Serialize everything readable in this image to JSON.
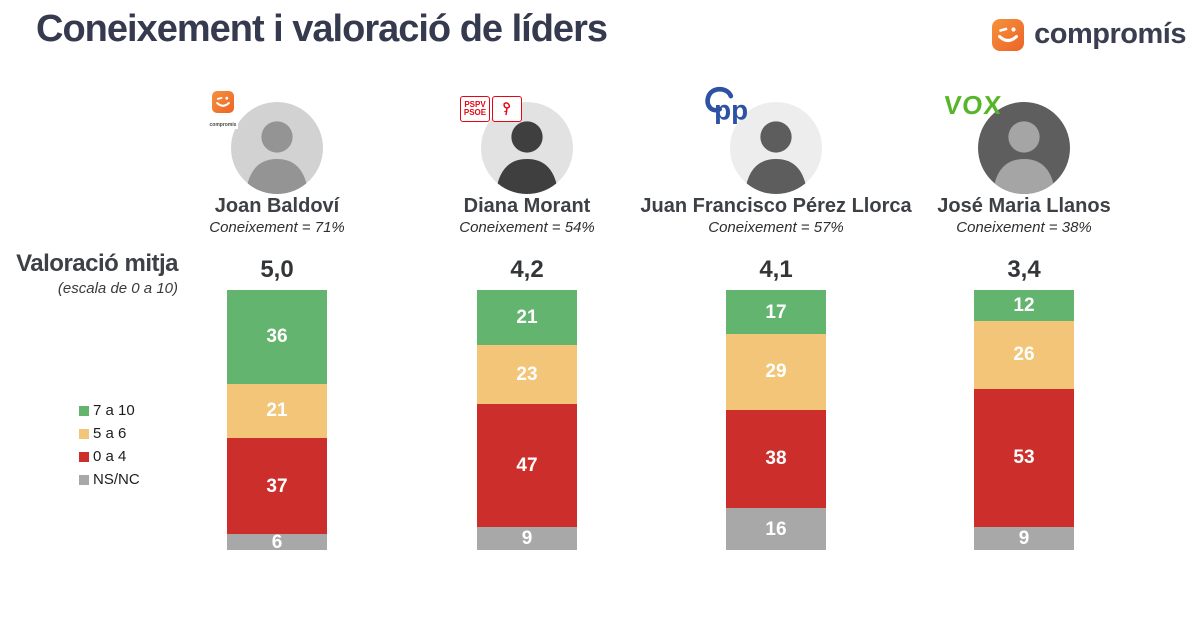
{
  "header": {
    "title": "Coneixement i valoració de líders",
    "brand": "compromís",
    "brand_color": "#3a3e50",
    "brand_orange": "#ee7227"
  },
  "axis_label": {
    "title": "Valoració mitja",
    "subtitle": "(escala de 0 a 10)"
  },
  "legend": [
    {
      "label": "7 a 10",
      "color": "#63b46e"
    },
    {
      "label": "5 a 6",
      "color": "#f2c579"
    },
    {
      "label": "0 a 4",
      "color": "#cc2f2b"
    },
    {
      "label": "NS/NC",
      "color": "#a8a8a8"
    }
  ],
  "party_logos": {
    "compromis": {
      "text": "compromís",
      "color": "#ee7227"
    },
    "pspv": {
      "line1": "PSPV",
      "line2": "PSOE",
      "color": "#e30613"
    },
    "pp": {
      "text": "pp",
      "color": "#2d51a3"
    },
    "vox": {
      "text": "VOX",
      "color": "#57b529"
    }
  },
  "leaders": [
    {
      "name": "Joan Baldoví",
      "party": "Compromís",
      "coneixement": "Coneixement =  71%",
      "average": "5,0",
      "photo_bg": "#d2d2d2",
      "photo_fg": "#949494"
    },
    {
      "name": "Diana Morant",
      "party": "PSPV-PSOE",
      "coneixement": "Coneixement = 54%",
      "average": "4,2",
      "photo_bg": "#e2e2e2",
      "photo_fg": "#3f3f3f"
    },
    {
      "name": "Juan Francisco Pérez Llorca",
      "party": "PP",
      "coneixement": "Coneixement = 57%",
      "average": "4,1",
      "photo_bg": "#ededed",
      "photo_fg": "#5d5d5d"
    },
    {
      "name": "José Maria Llanos",
      "party": "VOX",
      "coneixement": "Coneixement = 38%",
      "average": "3,4",
      "photo_bg": "#5e5e5e",
      "photo_fg": "#a5a5a5"
    }
  ],
  "chart_data": {
    "type": "bar",
    "stacked": true,
    "orientation": "vertical",
    "title": "Coneixement i valoració de líders",
    "categories": [
      "Joan Baldoví",
      "Diana Morant",
      "Juan Francisco Pérez Llorca",
      "José Maria Llanos"
    ],
    "series": [
      {
        "name": "7 a 10",
        "color": "#63b46e",
        "values": [
          36,
          21,
          17,
          12
        ]
      },
      {
        "name": "5 a 6",
        "color": "#f2c579",
        "values": [
          21,
          23,
          29,
          26
        ]
      },
      {
        "name": "0 a 4",
        "color": "#cc2f2b",
        "values": [
          37,
          47,
          38,
          53
        ]
      },
      {
        "name": "NS/NC",
        "color": "#a8a8a8",
        "values": [
          6,
          9,
          16,
          9
        ]
      }
    ],
    "bar_totals": [
      100,
      100,
      100,
      100
    ],
    "averages": [
      5.0,
      4.2,
      4.1,
      3.4
    ],
    "averages_display": [
      "5,0",
      "4,2",
      "4,1",
      "3,4"
    ],
    "coneixement_pct": [
      71,
      54,
      57,
      38
    ],
    "ylim": [
      0,
      100
    ],
    "grid": false,
    "legend_position": "left"
  }
}
